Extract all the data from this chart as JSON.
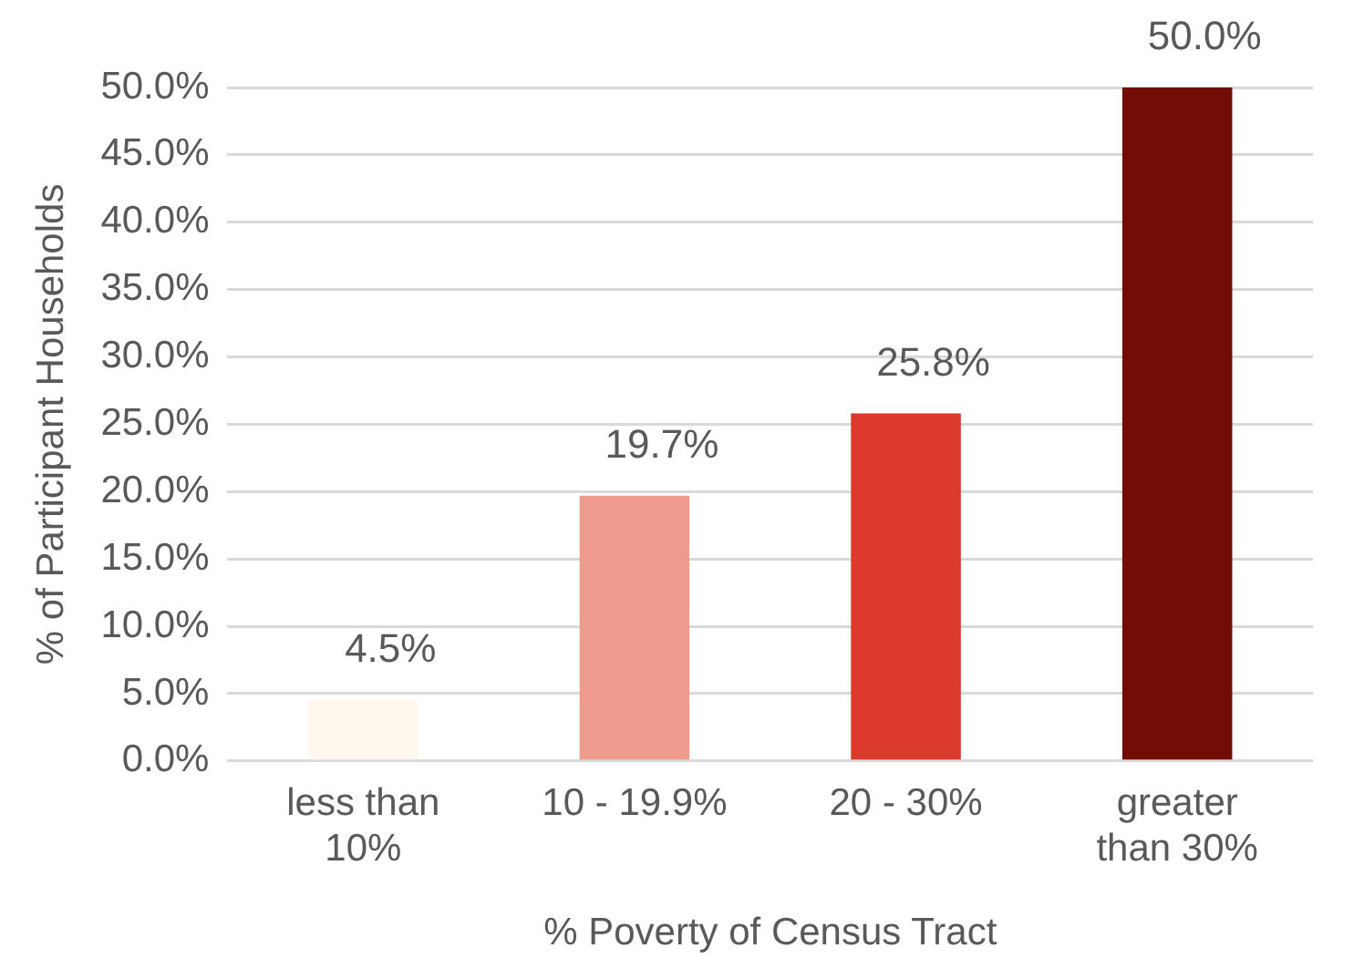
{
  "chart_data": {
    "type": "bar",
    "xlabel": "% Poverty of Census Tract",
    "ylabel": "% of Participant Households",
    "categories": [
      "less than 10%",
      "10 - 19.9%",
      "20 - 30%",
      "greater than 30%"
    ],
    "values": [
      4.5,
      19.7,
      25.8,
      50.0
    ],
    "colors": [
      "#fff8ee",
      "#ee9a8c",
      "#dc3a2c",
      "#720d05"
    ],
    "value_labels": [
      "4.5%",
      "19.7%",
      "25.8%",
      "50.0%"
    ],
    "ylim": [
      0,
      50
    ],
    "yticks": [
      {
        "value": 0,
        "label": "0.0%"
      },
      {
        "value": 5,
        "label": "5.0%"
      },
      {
        "value": 10,
        "label": "10.0%"
      },
      {
        "value": 15,
        "label": "15.0%"
      },
      {
        "value": 20,
        "label": "20.0%"
      },
      {
        "value": 25,
        "label": "25.0%"
      },
      {
        "value": 30,
        "label": "30.0%"
      },
      {
        "value": 35,
        "label": "35.0%"
      },
      {
        "value": 40,
        "label": "40.0%"
      },
      {
        "value": 45,
        "label": "45.0%"
      },
      {
        "value": 50,
        "label": "50.0%"
      }
    ],
    "grid": "y",
    "legend": false
  }
}
